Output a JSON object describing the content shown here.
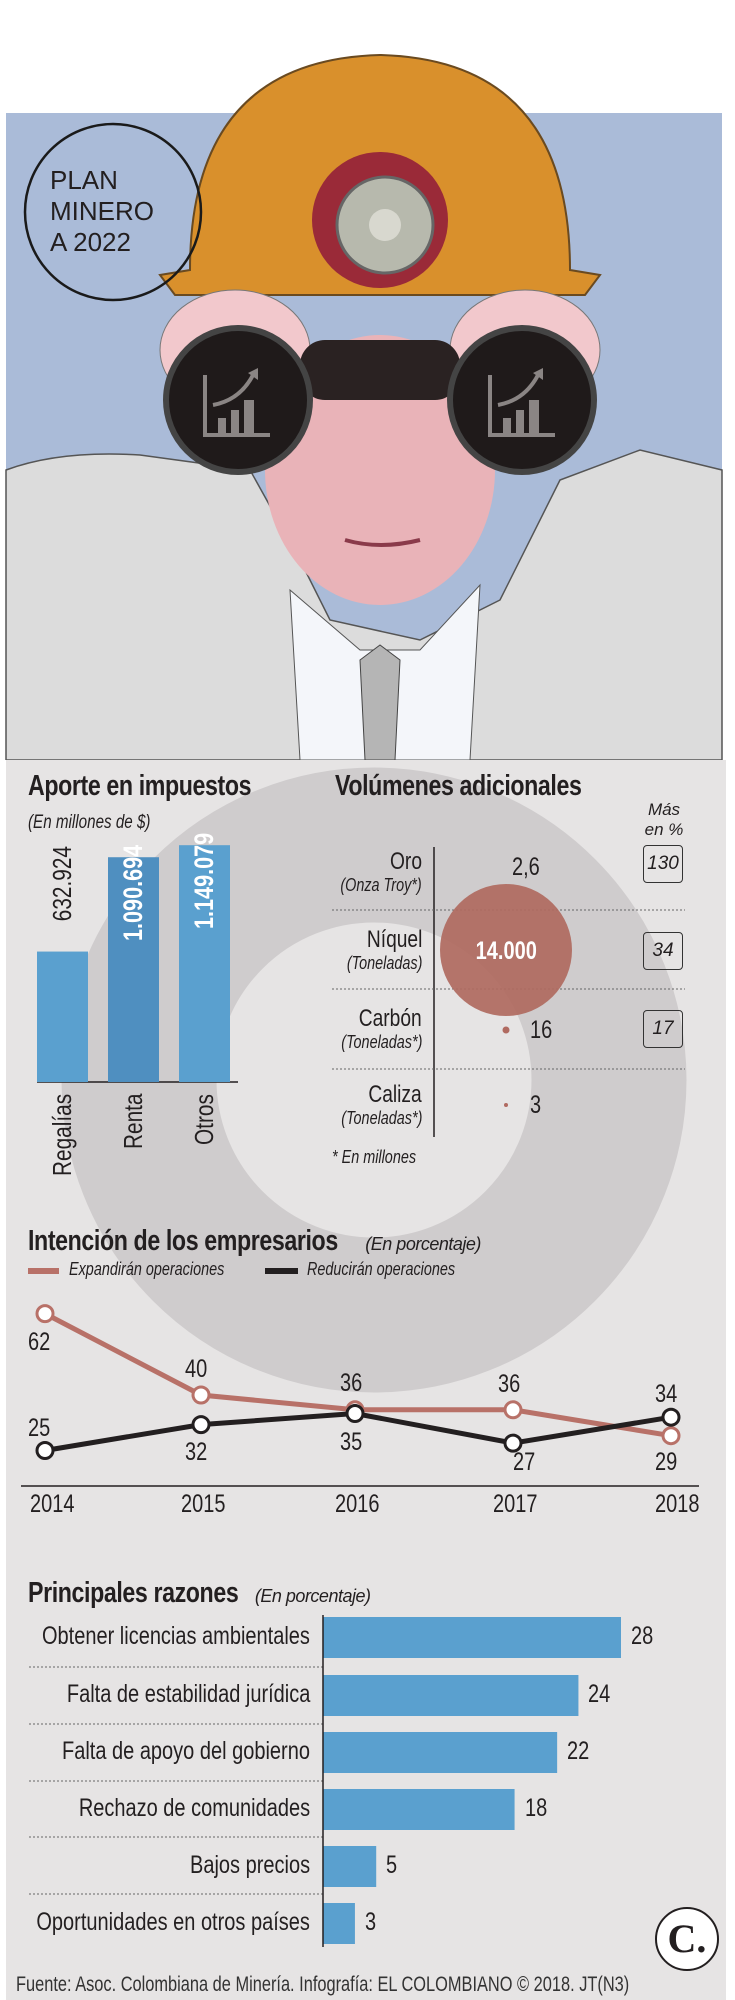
{
  "badge": {
    "lines": [
      "PLAN",
      "MINERO",
      "A 2022"
    ]
  },
  "colors": {
    "blue_bg": "#aabbd8",
    "panel": "#e6e4e4",
    "bar_blue": "#5aa0cf",
    "bar_blue_dark": "#4f8fc0",
    "expand": "#b87168",
    "reduce": "#231f20",
    "bubble": "#b06a60"
  },
  "chart_data": [
    {
      "type": "bar",
      "title": "Aporte en impuestos",
      "subtitle": "(En millones de $)",
      "categories": [
        "Regalías",
        "Renta",
        "Otros"
      ],
      "values": [
        632924,
        1090694,
        1149079
      ],
      "value_labels": [
        "632.924",
        "1.090.694",
        "1.149.079"
      ],
      "ylim": [
        0,
        1150000
      ]
    },
    {
      "type": "table",
      "title": "Volúmenes adicionales",
      "column_header": "Más en %",
      "rows": [
        {
          "name": "Oro",
          "unit": "(Onza Troy*)",
          "value": 2.6,
          "value_label": "2,6",
          "pct": "130"
        },
        {
          "name": "Níquel",
          "unit": "(Toneladas)",
          "value": 14000,
          "value_label": "14.000",
          "pct": "34"
        },
        {
          "name": "Carbón",
          "unit": "(Toneladas*)",
          "value": 16,
          "value_label": "16",
          "pct": "17"
        },
        {
          "name": "Caliza",
          "unit": "(Toneladas*)",
          "value": 3,
          "value_label": "3",
          "pct": ""
        }
      ],
      "footnote": "* En millones"
    },
    {
      "type": "line",
      "title": "Intención de los empresarios",
      "subtitle": "(En porcentaje)",
      "x": [
        "2014",
        "2015",
        "2016",
        "2017",
        "2018"
      ],
      "series": [
        {
          "name": "Expandirán operaciones",
          "values": [
            62,
            40,
            36,
            36,
            29
          ]
        },
        {
          "name": "Reducirán operaciones",
          "values": [
            25,
            32,
            35,
            27,
            34
          ]
        }
      ],
      "ylim": [
        0,
        70
      ]
    },
    {
      "type": "bar",
      "orientation": "horizontal",
      "title": "Principales razones",
      "subtitle": "(En porcentaje)",
      "categories": [
        "Obtener licencias ambientales",
        "Falta de estabilidad jurídica",
        "Falta de apoyo del gobierno",
        "Rechazo de comunidades",
        "Bajos precios",
        "Oportunidades en otros países"
      ],
      "values": [
        28,
        24,
        22,
        18,
        5,
        3
      ],
      "xlim": [
        0,
        28
      ]
    }
  ],
  "logo": "C.",
  "footer": "Fuente: Asoc. Colombiana de Minería. Infografía: EL COLOMBIANO © 2018. JT(N3)"
}
